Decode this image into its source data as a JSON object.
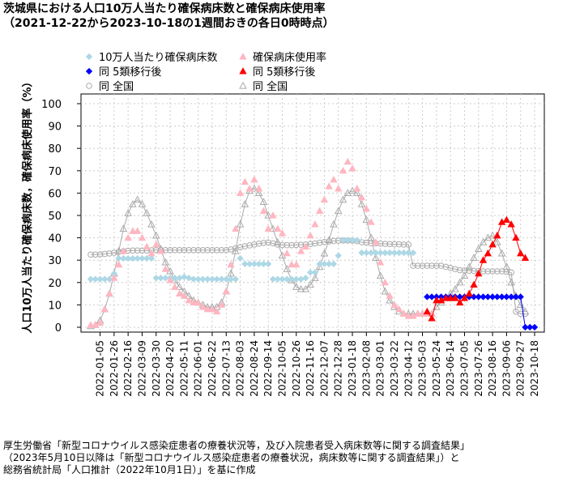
{
  "header": {
    "title": "茨城県における人口10万人当たり確保病床数と確保病床使用率",
    "subtitle": "（2021-12-22から2023-10-18の1週間おきの各日0時時点）"
  },
  "footer": {
    "line1": "厚生労働省「新型コロナウイルス感染症患者の療養状況等，及び入院患者受入病床数等に関する調査結果」",
    "line2": "（2023年5月10日以降は「新型コロナウイルス感染症患者の療養状況，病床数等に関する調査結果」）と",
    "line3": "総務省統計局「人口推計（2022年10月1日）」を基に作成"
  },
  "colors": {
    "beds_ibaraki": "#add8e6",
    "beds_ibaraki_5": "#0000ff",
    "usage_ibaraki": "#ffb6c1",
    "usage_ibaraki_5": "#ff0000",
    "national": "#aaaaaa",
    "grid": "#cccccc"
  },
  "chart_data": {
    "type": "scatter",
    "ylabel": "人口10万人当たり確保病床数，確保病床使用率（%）",
    "ylim": [
      0,
      100
    ],
    "yticks": [
      0,
      10,
      20,
      30,
      40,
      50,
      60,
      70,
      80,
      90,
      100
    ],
    "grid": true,
    "legend_position": "top-left",
    "x_start": "2021-12-22",
    "x_end": "2023-10-18",
    "x_tick_labels": [
      "2022-01-05",
      "2022-01-26",
      "2022-02-16",
      "2022-03-09",
      "2022-03-30",
      "2022-04-20",
      "2022-05-11",
      "2022-06-01",
      "2022-06-22",
      "2022-07-13",
      "2022-08-03",
      "2022-08-24",
      "2022-09-14",
      "2022-10-05",
      "2022-10-26",
      "2022-11-16",
      "2022-12-07",
      "2022-12-28",
      "2023-01-18",
      "2023-02-08",
      "2023-03-01",
      "2023-03-22",
      "2023-04-12",
      "2023-05-03",
      "2023-05-24",
      "2023-06-14",
      "2023-07-05",
      "2023-07-26",
      "2023-08-16",
      "2023-09-06",
      "2023-09-27",
      "2023-10-18"
    ],
    "legend": [
      {
        "label": "10万人当たり確保病床数",
        "series": "beds_ibaraki"
      },
      {
        "label": "確保病床使用率",
        "series": "usage_ibaraki"
      },
      {
        "label": "同 5類移行後",
        "series": "beds_ibaraki_5"
      },
      {
        "label": "同 5類移行後",
        "series": "usage_ibaraki_5"
      },
      {
        "label": "同 全国",
        "series": "beds_national"
      },
      {
        "label": "同 全国",
        "series": "usage_national"
      }
    ],
    "series": [
      {
        "id": "beds_ibaraki",
        "marker": "diamond",
        "color": "#add8e6",
        "line": false,
        "x_start": "2021-12-22",
        "values": [
          21.5,
          21.5,
          21.5,
          21.5,
          21.5,
          24,
          30.8,
          30.8,
          30.8,
          30.8,
          30.8,
          30.8,
          30.8,
          30.8,
          22,
          22,
          22,
          22,
          22,
          22,
          22.5,
          22,
          21.5,
          21.5,
          21.5,
          21.5,
          21.5,
          21.5,
          21.5,
          21.5,
          21.5,
          21.5,
          30.8,
          28.3,
          28.3,
          28.3,
          28.3,
          28.3,
          28.3,
          21.5,
          21.5,
          21.5,
          21.5,
          21.5,
          21.5,
          21.5,
          22,
          24.5,
          24.5,
          28.3,
          28.3,
          28.3,
          28.3,
          32,
          39,
          39,
          39,
          39,
          33.3,
          33.3,
          33.3,
          33.3,
          33.3,
          33.3,
          33.3,
          33.3,
          33.3,
          33.3,
          33.3,
          33.3
        ]
      },
      {
        "id": "beds_ibaraki_5",
        "marker": "diamond",
        "color": "#0000ff",
        "line": true,
        "x_start": "2023-05-10",
        "values": [
          13.6,
          13.6,
          13.6,
          13.6,
          13.6,
          13.6,
          13.6,
          13.6,
          13.6,
          13.6,
          13.6,
          13.6,
          13.6,
          13.6,
          13.6,
          13.6,
          13.6,
          13.6,
          13.6,
          13.6,
          13.6,
          0,
          0,
          0
        ]
      },
      {
        "id": "usage_ibaraki",
        "marker": "triangle-filled",
        "color": "#ffb6c1",
        "line": false,
        "x_start": "2021-12-22",
        "values": [
          1,
          1,
          2,
          8,
          15,
          22,
          28,
          34,
          40,
          43,
          43,
          40,
          36,
          33,
          37,
          34,
          26,
          21,
          18,
          15,
          14,
          12,
          11,
          11,
          9,
          8,
          8,
          7,
          10,
          16,
          28,
          44,
          60,
          65,
          62,
          66,
          62,
          52,
          44,
          50,
          44,
          42,
          33,
          28,
          28,
          34,
          36,
          41,
          46,
          52,
          57,
          63,
          66,
          62,
          70,
          74,
          71,
          62,
          58,
          53,
          47,
          38,
          29,
          20,
          14,
          10,
          8,
          6,
          5,
          5,
          6,
          6,
          6,
          6
        ]
      },
      {
        "id": "usage_ibaraki_5",
        "marker": "triangle-filled",
        "color": "#ff0000",
        "line": true,
        "x_start": "2023-05-10",
        "values": [
          7,
          4,
          12,
          12,
          13,
          13,
          13,
          11,
          13,
          15,
          19,
          24,
          30,
          33,
          37,
          41,
          47,
          48,
          46,
          40,
          33,
          31
        ]
      },
      {
        "id": "beds_national",
        "marker": "circle-open",
        "color": "#aaaaaa",
        "line": true,
        "x_start": "2021-12-22",
        "values": [
          32.5,
          32.5,
          32.6,
          32.8,
          33,
          33.3,
          33.7,
          34,
          34.2,
          34.3,
          34.3,
          34.3,
          34.3,
          34.4,
          34.5,
          34.5,
          34.5,
          34.5,
          34.5,
          34.5,
          34.5,
          34.5,
          34.5,
          34.5,
          34.5,
          34.5,
          34.5,
          34.5,
          34.5,
          34.5,
          34.8,
          35.3,
          35.8,
          36.2,
          36.6,
          37,
          37.4,
          37.7,
          37.9,
          37.5,
          37,
          36.8,
          36.7,
          36.7,
          36.8,
          36.9,
          37,
          37.2,
          37.5,
          37.8,
          38.1,
          38.4,
          38.6,
          38.7,
          38.8,
          38.8,
          38.8,
          38.5,
          38,
          37.8,
          37.6,
          37.5,
          37.4,
          37.3,
          37.2,
          37.1,
          37.1,
          37,
          37,
          27.5,
          27.5,
          27.5,
          27.5,
          27.5,
          27.5,
          27.5,
          27,
          26.5,
          26,
          25.5,
          25.4,
          25.3,
          25.2,
          25.1,
          25,
          25,
          25,
          25,
          25,
          24.8,
          24.5,
          7,
          6,
          6
        ]
      },
      {
        "id": "usage_national",
        "marker": "triangle-open",
        "color": "#aaaaaa",
        "line": true,
        "x_start": "2021-12-22",
        "values": [
          0.5,
          1,
          3,
          8,
          15,
          24,
          34,
          44,
          51,
          55,
          57,
          55,
          51,
          46,
          41,
          35,
          29,
          25,
          21,
          18,
          16,
          14,
          12,
          11,
          10,
          9,
          9,
          9,
          11,
          16,
          24,
          34,
          46,
          55,
          61,
          62,
          60,
          56,
          50,
          44,
          38,
          32,
          26,
          21,
          18,
          17,
          17,
          19,
          22,
          27,
          33,
          39,
          46,
          52,
          57,
          60,
          61,
          60,
          55,
          48,
          40,
          31,
          23,
          16,
          12,
          9,
          7,
          6,
          6,
          6,
          6,
          6,
          6,
          6,
          9,
          11,
          13,
          15,
          17,
          20,
          23,
          27,
          31,
          35,
          38,
          40,
          41,
          38,
          33,
          27,
          20,
          14,
          10,
          7
        ]
      }
    ]
  }
}
